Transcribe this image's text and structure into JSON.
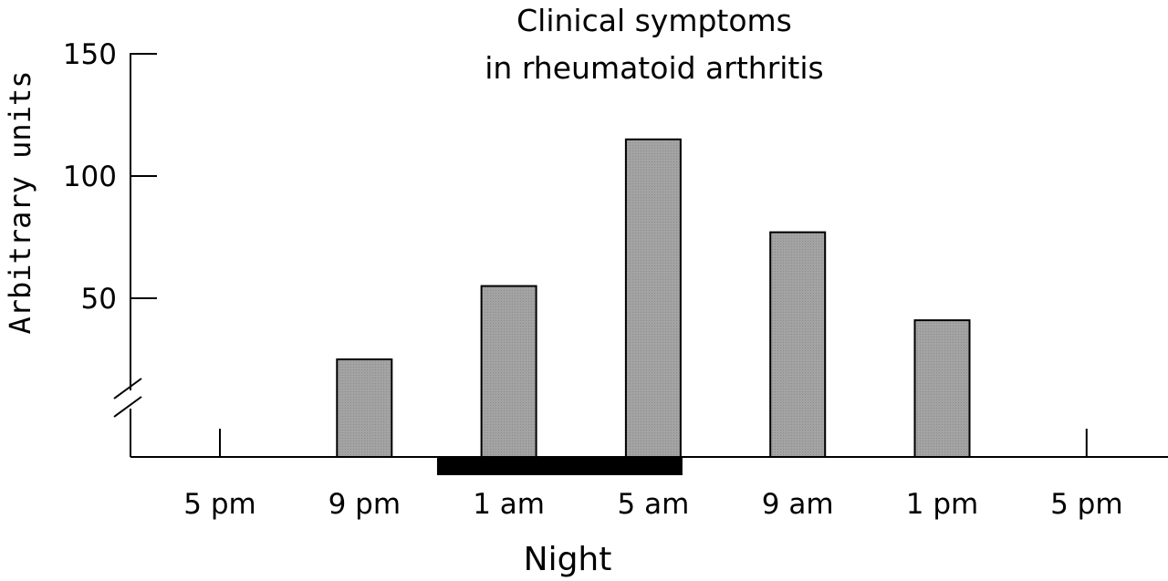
{
  "chart_data": {
    "type": "bar",
    "title": [
      "Clinical symptoms",
      "in rheumatoid arthritis"
    ],
    "xlabel": "Night",
    "ylabel": "Arbitrary units",
    "categories": [
      "5 pm",
      "9 pm",
      "1 am",
      "5 am",
      "9 am",
      "1 pm",
      "5 pm"
    ],
    "values": [
      null,
      25,
      55,
      115,
      77,
      41,
      null
    ],
    "yticks": [
      50,
      100,
      150
    ],
    "ylim": [
      0,
      150
    ],
    "y_axis_break": true,
    "grid": false,
    "night_period": {
      "start": "1 am",
      "end": "5 am"
    },
    "colors": {
      "bar_fill": "#9e9e9e",
      "bar_stroke": "#000000",
      "night_bar": "#000000",
      "axis": "#000000"
    }
  }
}
